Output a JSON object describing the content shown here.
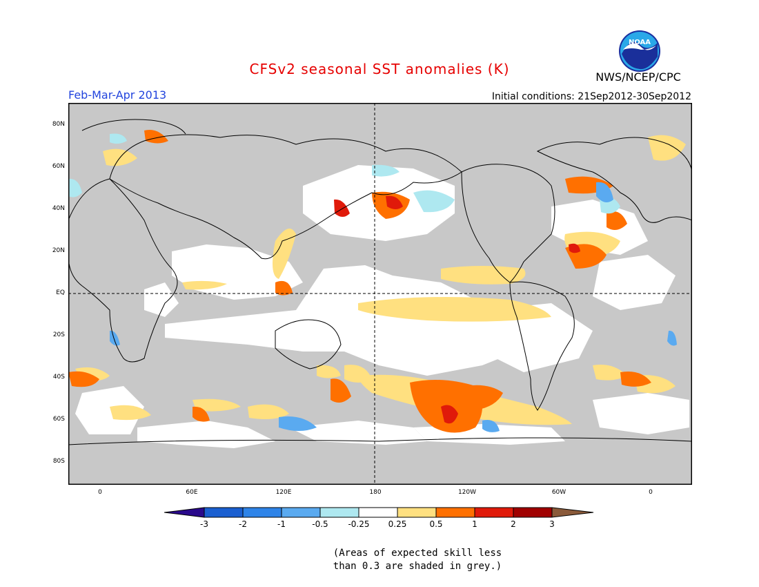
{
  "title": "CFSv2 seasonal SST anomalies (K)",
  "season": "Feb-Mar-Apr 2013",
  "initial_conditions": "Initial conditions: 21Sep2012-30Sep2012",
  "organization": "NWS/NCEP/CPC",
  "logo_text": "NOAA",
  "lat_labels": [
    "80N",
    "60N",
    "40N",
    "20N",
    "EQ",
    "20S",
    "40S",
    "60S",
    "80S"
  ],
  "lon_labels": [
    "0",
    "60E",
    "120E",
    "180",
    "120W",
    "60W",
    "0"
  ],
  "colorbar": {
    "labels": [
      "-3",
      "-2",
      "-1",
      "-0.5",
      "-0.25",
      "0.25",
      "0.5",
      "1",
      "2",
      "3"
    ],
    "colors": [
      "#2a0a8c",
      "#1a5fd0",
      "#2e84e8",
      "#5aaaf0",
      "#aee8f0",
      "#ffffff",
      "#ffe080",
      "#ff7000",
      "#e01a0a",
      "#a00000",
      "#8a5a3a"
    ]
  },
  "colors": {
    "land": "#c8c8c8",
    "title": "#e60000",
    "season": "#2244dd"
  },
  "note_lines": [
    "(Areas of expected skill less",
    "than 0.3 are shaded in grey.)"
  ]
}
